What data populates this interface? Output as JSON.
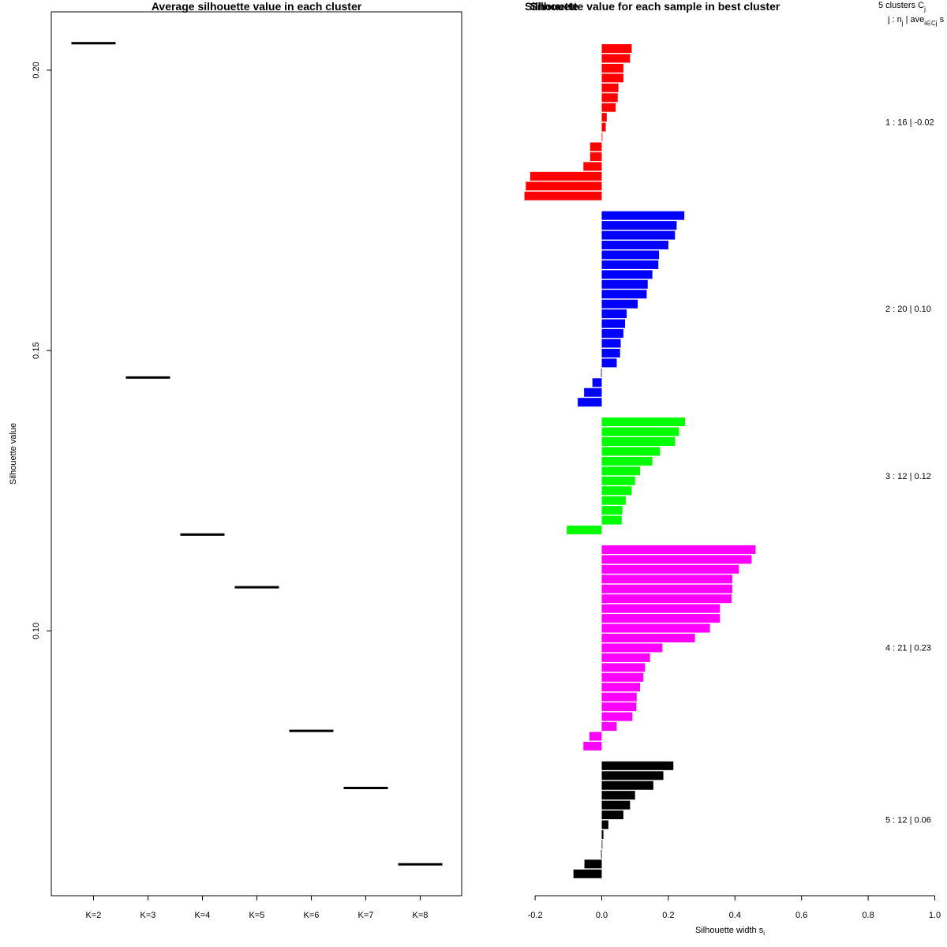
{
  "chart_data": [
    {
      "type": "line",
      "title": "Average silhouette value in each cluster",
      "ylabel": "Silhouette value",
      "xlabel": "",
      "categories": [
        "K=2",
        "K=3",
        "K=4",
        "K=5",
        "K=6",
        "K=7",
        "K=8"
      ],
      "values": [
        0.2048,
        0.1452,
        0.1172,
        0.1078,
        0.0822,
        0.072,
        0.0584
      ],
      "ylim": [
        0.0528,
        0.2104
      ],
      "yticks": [
        "0.10",
        "0.15",
        "0.20"
      ],
      "grid": false,
      "legend": "none"
    },
    {
      "type": "bar",
      "orientation": "horizontal",
      "title": "Silhouette value for each sample in best cluster",
      "title_overlay": "Silhouette",
      "xlabel": "Silhouette width s",
      "xlabel_sub": "i",
      "xlim": [
        -0.2,
        1.0
      ],
      "xticks": [
        "-0.2",
        "0.0",
        "0.2",
        "0.4",
        "0.6",
        "0.8",
        "1.0"
      ],
      "header_line1": "5 clusters C",
      "header_line1_sub": "j",
      "header_line2": "j : n",
      "header_line2_sub1": "j",
      "header_line2_mid": " | ave",
      "header_line2_sub2": "i∈Cj",
      "header_line2_end": " s",
      "header_line2_end_sub": "i",
      "grid": false,
      "clusters": [
        {
          "name": "1 :  16  |  -0.02",
          "color": "#ff0000",
          "values": [
            0.09,
            0.085,
            0.065,
            0.065,
            0.05,
            0.048,
            0.042,
            0.015,
            0.012,
            0.002,
            -0.035,
            -0.035,
            -0.055,
            -0.215,
            -0.228,
            -0.232
          ]
        },
        {
          "name": "2 :  20  |  0.10",
          "color": "#0000ff",
          "values": [
            0.248,
            0.225,
            0.22,
            0.2,
            0.172,
            0.17,
            0.152,
            0.138,
            0.135,
            0.108,
            0.075,
            0.07,
            0.065,
            0.057,
            0.055,
            0.045,
            -0.002,
            -0.028,
            -0.053,
            -0.072
          ]
        },
        {
          "name": "3 :  12  |  0.12",
          "color": "#00ff00",
          "values": [
            0.25,
            0.232,
            0.22,
            0.175,
            0.152,
            0.115,
            0.1,
            0.09,
            0.072,
            0.062,
            0.06,
            -0.105
          ]
        },
        {
          "name": "4 :  21  |  0.23",
          "color": "#ff00ff",
          "values": [
            0.462,
            0.45,
            0.412,
            0.392,
            0.392,
            0.39,
            0.355,
            0.355,
            0.325,
            0.28,
            0.182,
            0.145,
            0.13,
            0.125,
            0.115,
            0.105,
            0.104,
            0.092,
            0.045,
            -0.037,
            -0.055
          ]
        },
        {
          "name": "5 :  12  |  0.06",
          "color": "#000000",
          "values": [
            0.215,
            0.185,
            0.155,
            0.1,
            0.085,
            0.065,
            0.02,
            0.005,
            0.0,
            -0.002,
            -0.052,
            -0.085
          ]
        }
      ]
    }
  ]
}
